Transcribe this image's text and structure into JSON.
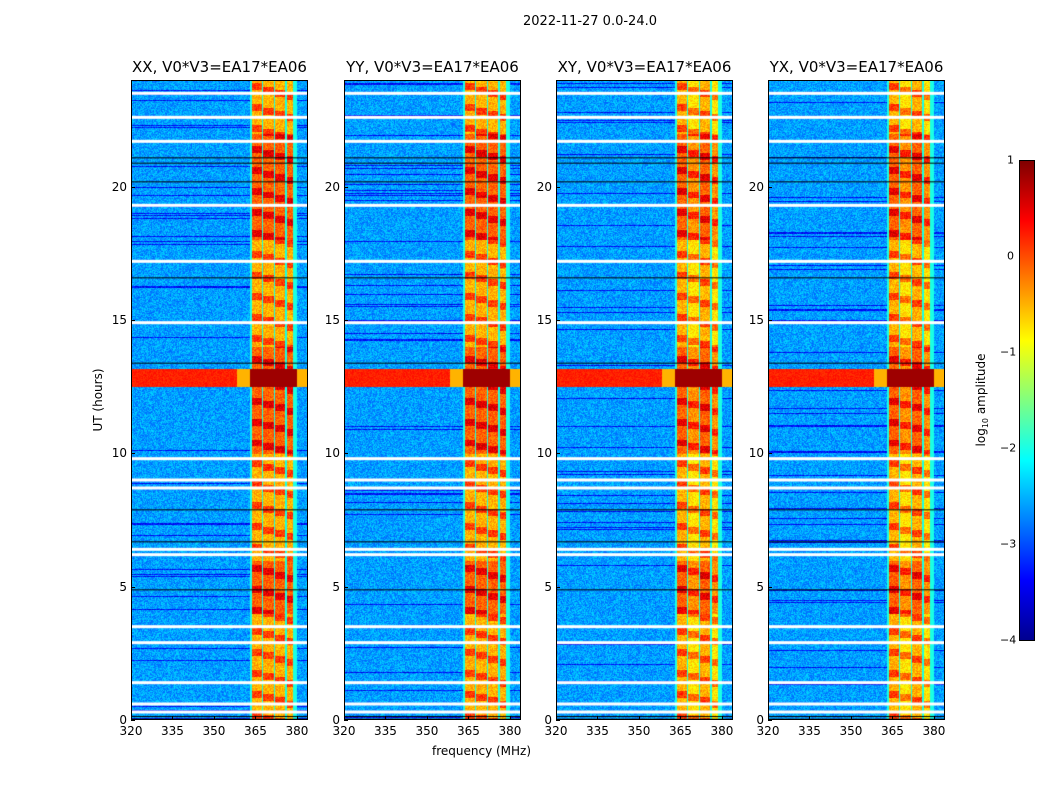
{
  "chart_data": {
    "type": "heatmap",
    "title": "2022-11-27 0.0-24.0",
    "xlabel": "frequency (MHz)",
    "ylabel": "UT (hours)",
    "xlim": [
      320,
      384
    ],
    "ylim": [
      0,
      24
    ],
    "xticks": [
      "320",
      "335",
      "350",
      "365",
      "380"
    ],
    "yticks": [
      "0",
      "5",
      "10",
      "15",
      "20"
    ],
    "panels": [
      {
        "title": "XX, V0*V3=EA17*EA06"
      },
      {
        "title": "YY, V0*V3=EA17*EA06"
      },
      {
        "title": "XY, V0*V3=EA17*EA06"
      },
      {
        "title": "YX, V0*V3=EA17*EA06"
      }
    ],
    "bright_band_mhz": [
      363,
      380
    ],
    "strong_rfi_hours": [
      12.5,
      13.2
    ],
    "flagged_hours": [
      0.3,
      0.6,
      1.4,
      2.9,
      3.5,
      6.2,
      6.4,
      8.7,
      9.0,
      9.8,
      14.9,
      17.2,
      19.3,
      21.7,
      22.6,
      23.5
    ],
    "colorbar": {
      "label": "log10 amplitude",
      "range": [
        -4,
        1
      ],
      "ticks": [
        "1",
        "0",
        "−1",
        "−2",
        "−3",
        "−4"
      ],
      "colormap": "jet"
    }
  }
}
